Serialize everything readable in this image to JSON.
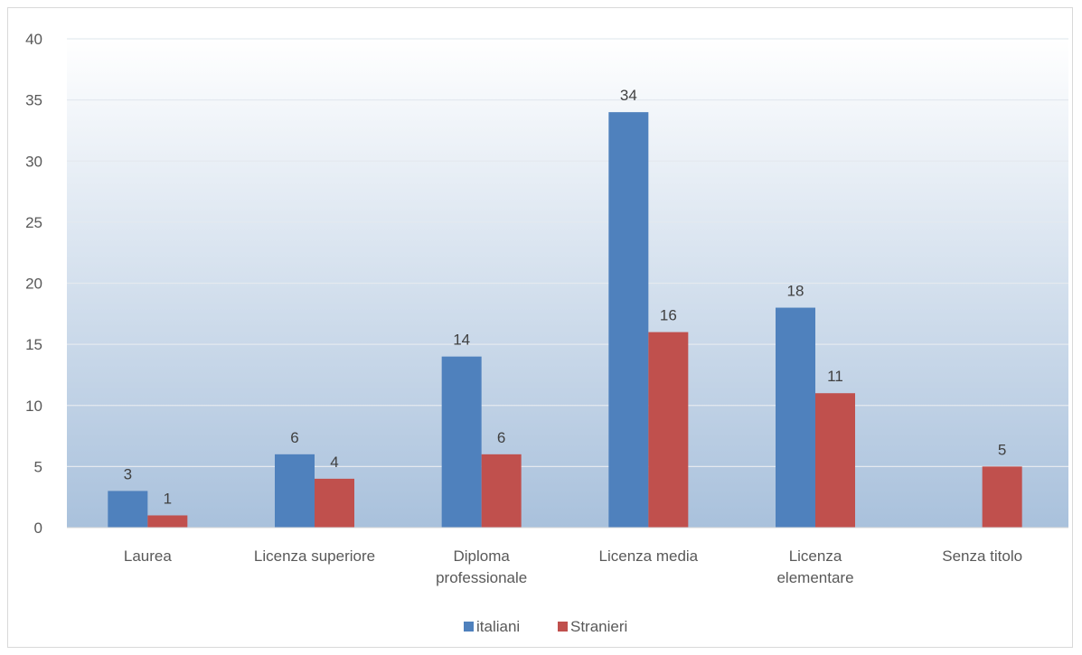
{
  "chart_data": {
    "type": "bar",
    "title": "",
    "xlabel": "",
    "ylabel": "",
    "categories": [
      [
        "Laurea"
      ],
      [
        "Licenza superiore"
      ],
      [
        "Diploma",
        "professionale"
      ],
      [
        "Licenza media"
      ],
      [
        "Licenza",
        "elementare"
      ],
      [
        "Senza titolo"
      ]
    ],
    "series": [
      {
        "name": "italiani",
        "color": "#4f81bd",
        "values": [
          3,
          6,
          14,
          34,
          18,
          null
        ]
      },
      {
        "name": "Stranieri",
        "color": "#c0504d",
        "values": [
          1,
          4,
          6,
          16,
          11,
          5
        ]
      }
    ],
    "ylim": [
      0,
      40
    ],
    "yticks": [
      0,
      5,
      10,
      15,
      20,
      25,
      30,
      35,
      40
    ],
    "grid": true,
    "legend_position": "bottom",
    "plot_background": {
      "top": "#ffffff",
      "bottom": "#a9c1dc"
    }
  }
}
